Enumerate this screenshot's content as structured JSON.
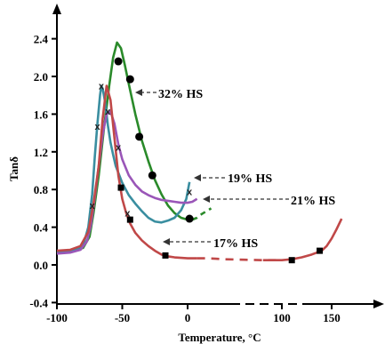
{
  "chart_data": {
    "type": "line",
    "xlabel": "Temperature, °C",
    "ylabel": "Tanδ",
    "xlim": [
      -100,
      160
    ],
    "ylim": [
      -0.4,
      2.5
    ],
    "x_ticks": [
      "-100",
      "-50",
      "0",
      "100",
      "150"
    ],
    "y_ticks": [
      "-0.4",
      "0.0",
      "0.4",
      "0.8",
      "1.2",
      "1.6",
      "2.0",
      "2.4"
    ],
    "grid": false,
    "series": [
      {
        "name": "32% HS",
        "color": "#2a8a2a",
        "marker": "circle",
        "x": [
          -100,
          -90,
          -80,
          -75,
          -72,
          -68,
          -64,
          -60,
          -57,
          -54,
          -51,
          -48,
          -45,
          -40,
          -35,
          -30,
          -25,
          -20,
          -15,
          -10,
          -5,
          0,
          5,
          10,
          15,
          20,
          25
        ],
        "y": [
          0.13,
          0.14,
          0.18,
          0.3,
          0.55,
          0.95,
          1.45,
          1.9,
          2.2,
          2.36,
          2.3,
          2.12,
          1.92,
          1.6,
          1.32,
          1.1,
          0.9,
          0.75,
          0.63,
          0.55,
          0.5,
          0.48,
          0.48,
          0.5,
          0.54,
          0.57,
          0.6
        ],
        "markers": [
          [
            -53,
            2.16
          ],
          [
            -44,
            1.97
          ],
          [
            -37,
            1.36
          ],
          [
            -27,
            0.95
          ],
          [
            2,
            0.49
          ]
        ],
        "dashed_from_x": 5
      },
      {
        "name": "19% HS",
        "color": "#3a8ea0",
        "marker": "x",
        "x": [
          -100,
          -90,
          -80,
          -76,
          -73,
          -71,
          -69,
          -67,
          -66,
          -65,
          -63,
          -61,
          -59,
          -57,
          -55,
          -50,
          -45,
          -40,
          -35,
          -30,
          -25,
          -20,
          -15,
          -10,
          -5,
          -1,
          2
        ],
        "y": [
          0.13,
          0.14,
          0.2,
          0.4,
          0.75,
          1.15,
          1.5,
          1.8,
          1.9,
          1.87,
          1.72,
          1.48,
          1.3,
          1.17,
          1.05,
          0.87,
          0.74,
          0.65,
          0.57,
          0.5,
          0.46,
          0.45,
          0.47,
          0.5,
          0.58,
          0.7,
          0.88
        ],
        "markers": [
          [
            -73,
            0.63
          ],
          [
            -69,
            1.47
          ],
          [
            -66,
            1.9
          ],
          [
            -53,
            1.25
          ],
          [
            2,
            0.78
          ]
        ]
      },
      {
        "name": "21% HS",
        "color": "#9a56b8",
        "marker": "x",
        "x": [
          -100,
          -90,
          -82,
          -77,
          -74,
          -71,
          -68,
          -65,
          -62,
          -59,
          -56,
          -53,
          -50,
          -45,
          -40,
          -35,
          -30,
          -25,
          -20,
          -15,
          -10,
          -5,
          0,
          5,
          10
        ],
        "y": [
          0.12,
          0.13,
          0.16,
          0.25,
          0.42,
          0.72,
          1.05,
          1.38,
          1.6,
          1.63,
          1.5,
          1.28,
          1.12,
          0.95,
          0.85,
          0.78,
          0.74,
          0.71,
          0.69,
          0.68,
          0.67,
          0.66,
          0.66,
          0.67,
          0.7
        ],
        "markers": [
          [
            -61,
            1.63
          ],
          [
            -46,
            0.55
          ]
        ]
      },
      {
        "name": "17% HS",
        "color": "#c04848",
        "marker": "square",
        "x": [
          -100,
          -90,
          -82,
          -76,
          -72,
          -68,
          -65,
          -62,
          -59,
          -56,
          -53,
          -50,
          -47,
          -44,
          -40,
          -35,
          -30,
          -25,
          -20,
          -15,
          -10,
          -5,
          0,
          10,
          20,
          30,
          40,
          60,
          80,
          100,
          110,
          120,
          130,
          140,
          145,
          150,
          155,
          160
        ],
        "y": [
          0.15,
          0.16,
          0.2,
          0.35,
          0.65,
          1.05,
          1.55,
          1.9,
          1.75,
          1.35,
          0.95,
          0.7,
          0.55,
          0.44,
          0.34,
          0.26,
          0.2,
          0.15,
          0.11,
          0.09,
          0.08,
          0.075,
          0.07,
          0.07,
          0.07,
          0.065,
          0.06,
          0.055,
          0.05,
          0.05,
          0.06,
          0.08,
          0.11,
          0.15,
          0.2,
          0.28,
          0.38,
          0.49
        ],
        "markers": [
          [
            -51,
            0.82
          ],
          [
            -44,
            0.48
          ],
          [
            -17,
            0.1
          ],
          [
            110,
            0.05
          ],
          [
            138,
            0.15
          ]
        ],
        "dashed_range": [
          10,
          75
        ]
      }
    ],
    "annotations": [
      "32% HS",
      "19% HS",
      "21% HS",
      "17% HS"
    ]
  }
}
